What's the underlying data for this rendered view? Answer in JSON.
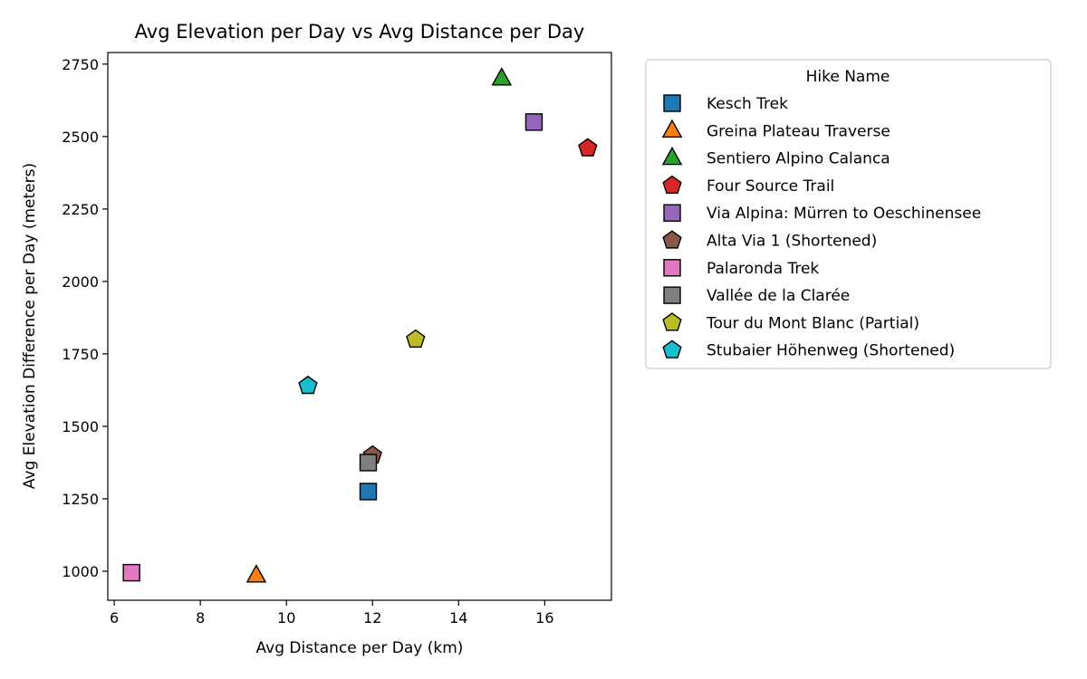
{
  "chart_data": {
    "type": "scatter",
    "title": "Avg Elevation per Day vs Avg Distance per Day",
    "xlabel": "Avg Distance per Day (km)",
    "ylabel": "Avg Elevation Difference per Day (meters)",
    "xlim": [
      5.85,
      17.55
    ],
    "ylim": [
      900,
      2790
    ],
    "xticks": [
      6,
      8,
      10,
      12,
      14,
      16
    ],
    "yticks": [
      1000,
      1250,
      1500,
      1750,
      2000,
      2250,
      2500,
      2750
    ],
    "grid": false,
    "legend": {
      "title": "Hike Name",
      "placement": "outside-right"
    },
    "series": [
      {
        "name": "Kesch Trek",
        "color": "#1f77b4",
        "marker": "square",
        "points": [
          {
            "x": 11.9,
            "y": 1275
          }
        ]
      },
      {
        "name": "Greina Plateau Traverse",
        "color": "#ff7f0e",
        "marker": "triangle",
        "points": [
          {
            "x": 9.3,
            "y": 985
          }
        ]
      },
      {
        "name": "Sentiero Alpino Calanca",
        "color": "#2ca02c",
        "marker": "triangle",
        "points": [
          {
            "x": 15.0,
            "y": 2700
          }
        ]
      },
      {
        "name": "Four Source Trail",
        "color": "#d62728",
        "marker": "pentagon",
        "points": [
          {
            "x": 17.0,
            "y": 2460
          }
        ]
      },
      {
        "name": "Via Alpina: Mürren to Oeschinensee",
        "color": "#9467bd",
        "marker": "square",
        "points": [
          {
            "x": 15.75,
            "y": 2550
          }
        ]
      },
      {
        "name": "Alta Via 1 (Shortened)",
        "color": "#8c564b",
        "marker": "pentagon",
        "points": [
          {
            "x": 12.0,
            "y": 1400
          }
        ]
      },
      {
        "name": "Palaronda Trek",
        "color": "#e377c2",
        "marker": "square",
        "points": [
          {
            "x": 6.4,
            "y": 995
          }
        ]
      },
      {
        "name": "Vallée de la Clarée",
        "color": "#7f7f7f",
        "marker": "square",
        "points": [
          {
            "x": 11.9,
            "y": 1375
          }
        ]
      },
      {
        "name": "Tour du Mont Blanc (Partial)",
        "color": "#bcbd22",
        "marker": "pentagon",
        "points": [
          {
            "x": 13.0,
            "y": 1800
          }
        ]
      },
      {
        "name": "Stubaier Höhenweg (Shortened)",
        "color": "#17becf",
        "marker": "pentagon",
        "points": [
          {
            "x": 10.5,
            "y": 1640
          }
        ]
      }
    ]
  }
}
